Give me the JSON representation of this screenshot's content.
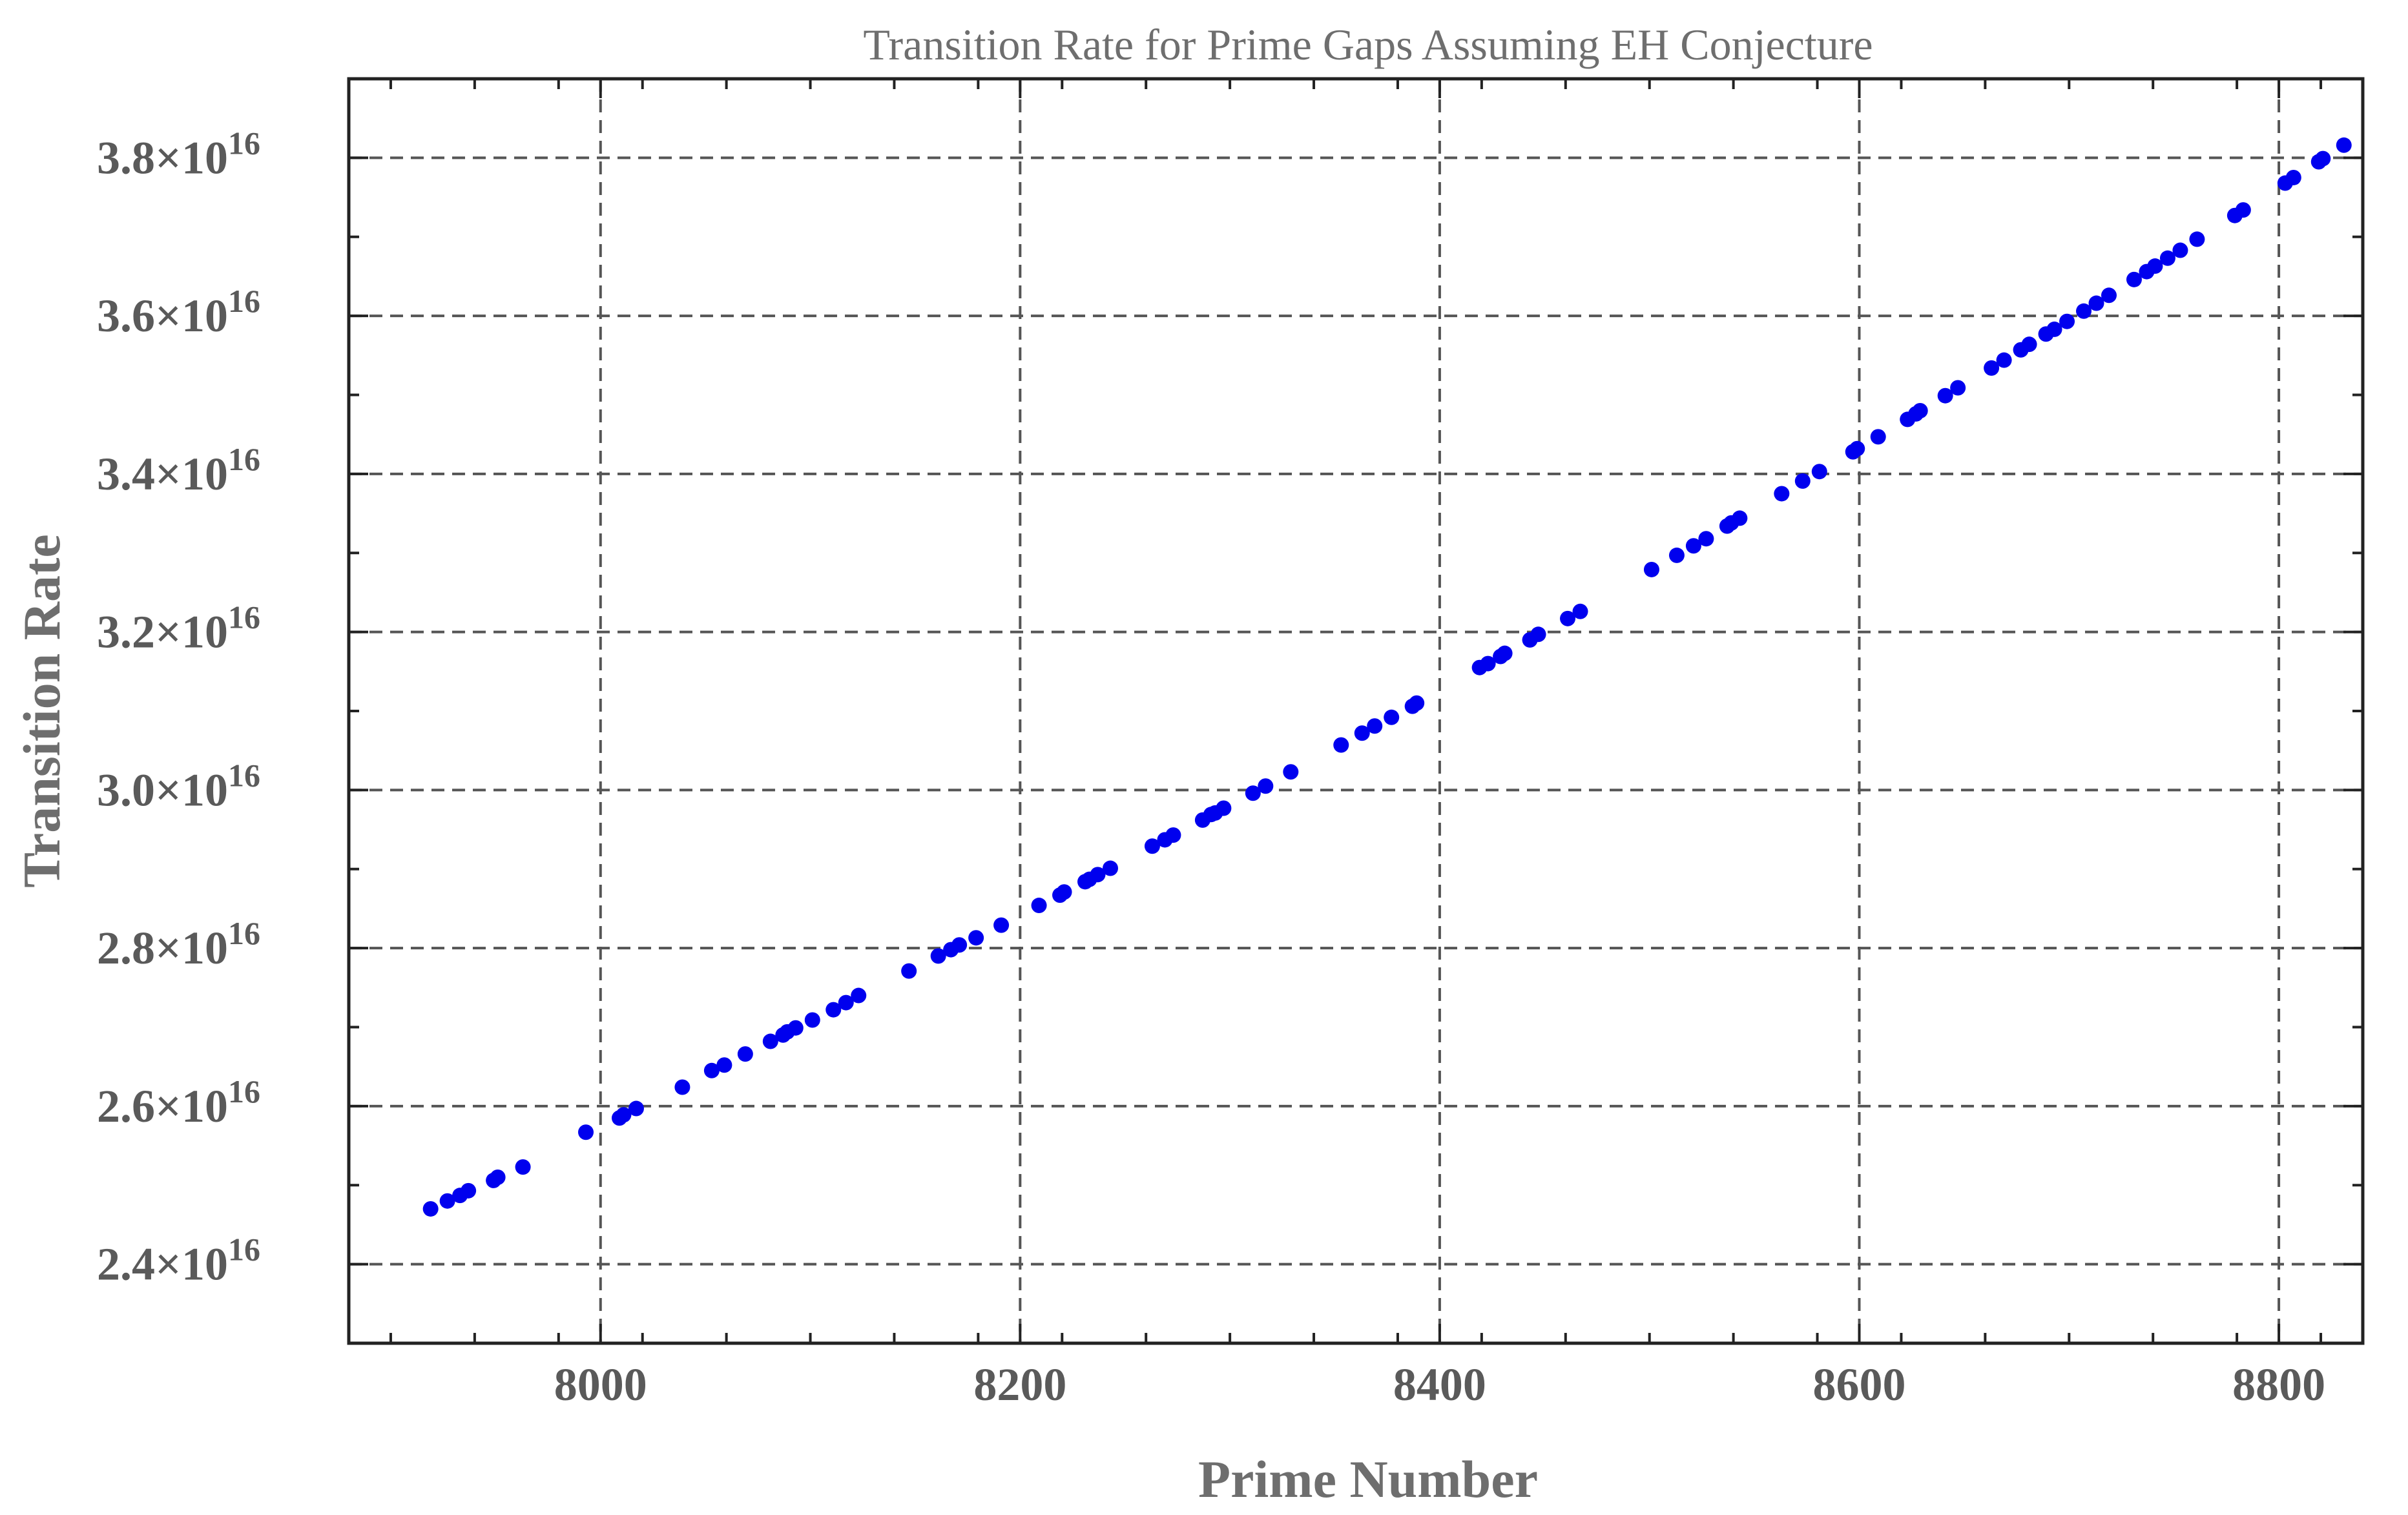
{
  "chart_data": {
    "type": "scatter",
    "title": "Transition Rate for Prime Gaps Assuming EH Conjecture",
    "xlabel": "Prime Number",
    "ylabel": "Transition Rate",
    "xlim": [
      7880,
      8840
    ],
    "ylim": [
      2.3e+16,
      3.9e+16
    ],
    "x_ticks": [
      8000,
      8200,
      8400,
      8600,
      8800
    ],
    "x_tick_labels": [
      "8000",
      "8200",
      "8400",
      "8600",
      "8800"
    ],
    "y_ticks": [
      2.4e+16,
      2.6e+16,
      2.8e+16,
      3e+16,
      3.2e+16,
      3.4e+16,
      3.6e+16,
      3.8e+16
    ],
    "y_tick_labels": [
      {
        "mantissa": "2.4",
        "times": "×",
        "base": "10",
        "exp": "16"
      },
      {
        "mantissa": "2.6",
        "times": "×",
        "base": "10",
        "exp": "16"
      },
      {
        "mantissa": "2.8",
        "times": "×",
        "base": "10",
        "exp": "16"
      },
      {
        "mantissa": "3.0",
        "times": "×",
        "base": "10",
        "exp": "16"
      },
      {
        "mantissa": "3.2",
        "times": "×",
        "base": "10",
        "exp": "16"
      },
      {
        "mantissa": "3.4",
        "times": "×",
        "base": "10",
        "exp": "16"
      },
      {
        "mantissa": "3.6",
        "times": "×",
        "base": "10",
        "exp": "16"
      },
      {
        "mantissa": "3.8",
        "times": "×",
        "base": "10",
        "exp": "16"
      }
    ],
    "grid": true,
    "marker_color": "#0000ee",
    "series": [
      {
        "x": [
          7919,
          7927,
          7933,
          7937,
          7949,
          7951,
          7963,
          7993,
          8009,
          8011,
          8017,
          8039,
          8053,
          8059,
          8069,
          8081,
          8087,
          8089,
          8093,
          8101,
          8111,
          8117,
          8123,
          8147,
          8161,
          8167,
          8171,
          8179,
          8191,
          8209,
          8219,
          8221,
          8231,
          8233,
          8237,
          8243,
          8263,
          8269,
          8273,
          8287,
          8291,
          8293,
          8297,
          8311,
          8317,
          8329,
          8353,
          8363,
          8369,
          8377,
          8387,
          8389,
          8419,
          8423,
          8429,
          8431,
          8443,
          8447,
          8461,
          8467,
          8501,
          8513,
          8521,
          8527,
          8537,
          8539,
          8543,
          8563,
          8573,
          8581,
          8597,
          8599,
          8609,
          8623,
          8627,
          8629,
          8641,
          8647,
          8663,
          8669,
          8677,
          8681,
          8689,
          8693,
          8699,
          8707,
          8713,
          8719,
          8731,
          8737,
          8741,
          8747,
          8753,
          8761,
          8779,
          8783,
          8803,
          8807,
          8819,
          8821,
          8831
        ],
        "y": [
          2.47e+16,
          2.48e+16,
          2.487e+16,
          2.493e+16,
          2.506e+16,
          2.51e+16,
          2.523e+16,
          2.567e+16,
          2.585e+16,
          2.589e+16,
          2.597e+16,
          2.624e+16,
          2.645e+16,
          2.652e+16,
          2.666e+16,
          2.682e+16,
          2.69e+16,
          2.694e+16,
          2.699e+16,
          2.709e+16,
          2.722e+16,
          2.731e+16,
          2.74e+16,
          2.771e+16,
          2.79e+16,
          2.798e+16,
          2.804e+16,
          2.813e+16,
          2.829e+16,
          2.854e+16,
          2.867e+16,
          2.871e+16,
          2.884e+16,
          2.887e+16,
          2.893e+16,
          2.901e+16,
          2.929e+16,
          2.937e+16,
          2.943e+16,
          2.962e+16,
          2.969e+16,
          2.971e+16,
          2.977e+16,
          2.996e+16,
          3.005e+16,
          3.023e+16,
          3.057e+16,
          3.072e+16,
          3.081e+16,
          3.092e+16,
          3.106e+16,
          3.11e+16,
          3.155e+16,
          3.16e+16,
          3.169e+16,
          3.173e+16,
          3.19e+16,
          3.197e+16,
          3.217e+16,
          3.226e+16,
          3.279e+16,
          3.297e+16,
          3.309e+16,
          3.318e+16,
          3.334e+16,
          3.338e+16,
          3.344e+16,
          3.375e+16,
          3.391e+16,
          3.403e+16,
          3.428e+16,
          3.432e+16,
          3.447e+16,
          3.469e+16,
          3.476e+16,
          3.48e+16,
          3.499e+16,
          3.509e+16,
          3.534e+16,
          3.544e+16,
          3.557e+16,
          3.564e+16,
          3.577e+16,
          3.583e+16,
          3.593e+16,
          3.606e+16,
          3.616e+16,
          3.626e+16,
          3.646e+16,
          3.656e+16,
          3.663e+16,
          3.673e+16,
          3.683e+16,
          3.697e+16,
          3.727e+16,
          3.734e+16,
          3.768e+16,
          3.775e+16,
          3.795e+16,
          3.799e+16,
          3.816e+16
        ]
      }
    ]
  }
}
